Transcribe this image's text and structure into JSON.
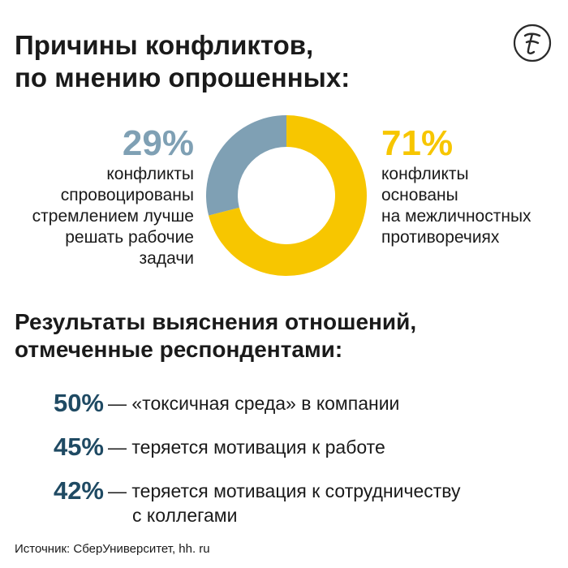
{
  "title_lines": [
    "Причины конфликтов,",
    "по мнению опрошенных:"
  ],
  "colors": {
    "work": "#7fa0b4",
    "interpersonal": "#f7c600",
    "result_pct": "#1f4a63"
  },
  "logo_icon": "newspaper-logo-icon",
  "chart_data": [
    {
      "type": "pie",
      "donut": true,
      "slices": [
        {
          "value": 29,
          "label": "29%",
          "color": "#7fa0b4",
          "desc_lines": [
            "конфликты",
            "спровоцированы",
            "стремлением лучше",
            "решать рабочие",
            "задачи"
          ]
        },
        {
          "value": 71,
          "label": "71%",
          "color": "#f7c600",
          "desc_lines": [
            "конфликты",
            "основаны",
            "на межличностных",
            "противоречиях"
          ]
        }
      ]
    },
    {
      "type": "table",
      "title_lines": [
        "Результаты выяснения отношений,",
        "отмеченные респондентами:"
      ],
      "rows": [
        {
          "value": 50,
          "label": "50%",
          "text_lines": [
            "— «токсичная среда» в компании"
          ]
        },
        {
          "value": 45,
          "label": "45%",
          "text_lines": [
            "— теряется мотивация к работе"
          ]
        },
        {
          "value": 42,
          "label": "42%",
          "text_lines": [
            "— теряется мотивация к сотрудничеству",
            "с коллегами"
          ]
        }
      ]
    }
  ],
  "source": "Источник: СберУниверситет, hh. ru"
}
